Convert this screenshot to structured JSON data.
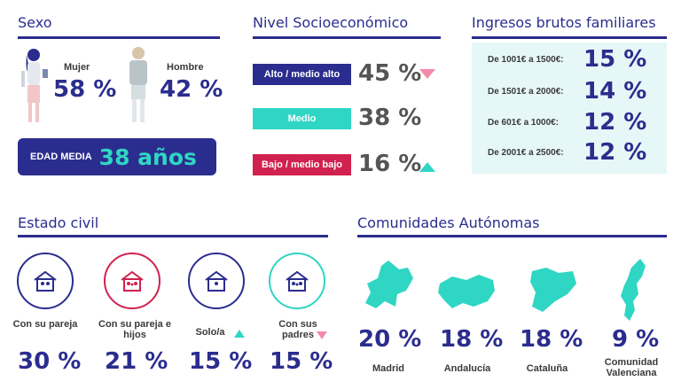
{
  "sexo": {
    "title": "Sexo",
    "female_label": "Mujer",
    "female_value": "58 %",
    "male_label": "Hombre",
    "male_value": "42 %",
    "age_label": "EDAD MEDIA",
    "age_value": "38 años"
  },
  "nse": {
    "title": "Nivel Socioeconómico",
    "rows": [
      {
        "label": "Alto / medio alto",
        "value": "45 %",
        "color": "#2b2d8e",
        "trend": "down"
      },
      {
        "label": "Medio",
        "value": "38 %",
        "color": "#2fd6c3",
        "trend": ""
      },
      {
        "label": "Bajo / medio bajo",
        "value": "16 %",
        "color": "#d0214f",
        "trend": "up"
      }
    ]
  },
  "ingresos": {
    "title": "Ingresos brutos familiares",
    "rows": [
      {
        "label": "De 1001€ a 1500€:",
        "value": "15 %"
      },
      {
        "label": "De 1501€ a 2000€:",
        "value": "14 %"
      },
      {
        "label": "De 601€ a 1000€:",
        "value": "12 %"
      },
      {
        "label": "De 2001€ a 2500€:",
        "value": "12 %"
      }
    ],
    "bg_color": "#e6f7f7"
  },
  "civil": {
    "title": "Estado civil",
    "items": [
      {
        "label": "Con su pareja",
        "value": "30 %",
        "color": "#2b2d8e",
        "trend": ""
      },
      {
        "label": "Con su pareja e hijos",
        "value": "21 %",
        "color": "#d0214f",
        "trend": ""
      },
      {
        "label": "Solo/a",
        "value": "15 %",
        "color": "#2b2d8e",
        "trend": "up"
      },
      {
        "label": "Con sus padres",
        "value": "15 %",
        "color": "#2fd6c3",
        "trend": "down"
      }
    ]
  },
  "ccaa": {
    "title": "Comunidades Autónomas",
    "items": [
      {
        "label": "Madrid",
        "value": "20 %"
      },
      {
        "label": "Andalucía",
        "value": "18 %"
      },
      {
        "label": "Cataluña",
        "value": "18 %"
      },
      {
        "label": "Comunidad Valenciana",
        "value": "9 %"
      }
    ],
    "map_color": "#2fd6c3"
  },
  "colors": {
    "navy": "#2b2d8e",
    "teal": "#2fd6c3",
    "pink": "#f28aa8",
    "crimson": "#d0214f"
  }
}
